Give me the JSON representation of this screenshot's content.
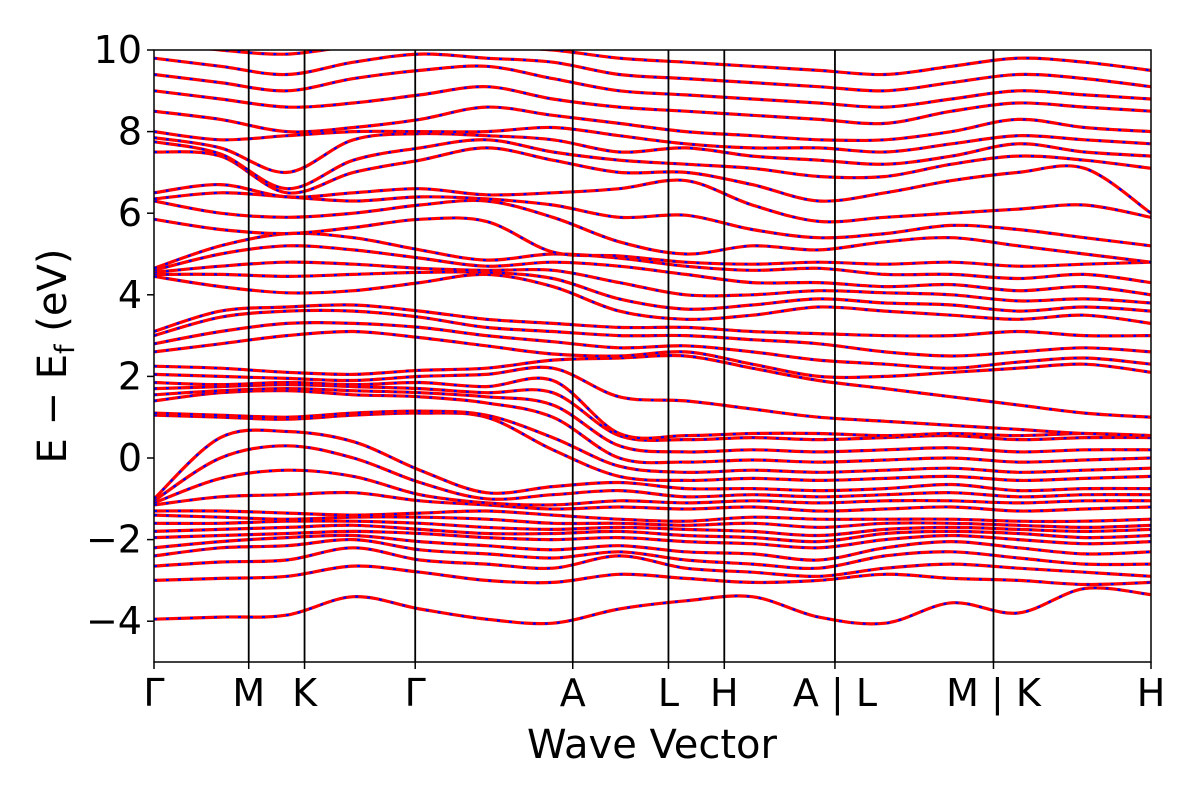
{
  "chart_data": {
    "type": "line",
    "title": "",
    "xlabel": "Wave Vector",
    "ylabel_parts": {
      "main": "E − E",
      "sub": "f",
      "unit": " (eV)"
    },
    "ylim": [
      -5,
      10
    ],
    "yticks": [
      {
        "value": 10,
        "label": "10"
      },
      {
        "value": 8,
        "label": "8"
      },
      {
        "value": 6,
        "label": "6"
      },
      {
        "value": 4,
        "label": "4"
      },
      {
        "value": 2,
        "label": "2"
      },
      {
        "value": 0,
        "label": "0"
      },
      {
        "value": -2,
        "label": "−2"
      },
      {
        "value": -4,
        "label": "−4"
      }
    ],
    "kpath": [
      {
        "label": "Γ",
        "k": 0.0
      },
      {
        "label": "M",
        "k": 0.095
      },
      {
        "label": "K",
        "k": 0.151
      },
      {
        "label": "Γ",
        "k": 0.262
      },
      {
        "label": "A",
        "k": 0.42
      },
      {
        "label": "L",
        "k": 0.516
      },
      {
        "label": "H",
        "k": 0.572
      },
      {
        "label": "A | L",
        "k": 0.683
      },
      {
        "label": "M | K",
        "k": 0.842
      },
      {
        "label": "H",
        "k": 1.0
      }
    ],
    "grid": false,
    "colors": {
      "band_line": "#ff0000",
      "band_dash": "#0000ff",
      "kpoint_line": "#000000",
      "axes": "#000000"
    },
    "series": [
      {
        "values": [
          -3.95,
          -3.9,
          -3.85,
          -3.4,
          -3.7,
          -3.95,
          -4.05,
          -3.7,
          -3.5,
          -3.4,
          -3.9,
          -4.05,
          -3.55,
          -3.8,
          -3.2,
          -3.35
        ]
      },
      {
        "values": [
          -3.0,
          -2.95,
          -2.9,
          -2.65,
          -2.8,
          -3.0,
          -3.05,
          -2.85,
          -2.95,
          -3.05,
          -3.0,
          -2.85,
          -2.95,
          -3.0,
          -3.1,
          -3.05
        ]
      },
      {
        "values": [
          -2.65,
          -2.55,
          -2.5,
          -2.2,
          -2.5,
          -2.6,
          -2.7,
          -2.4,
          -2.7,
          -2.8,
          -2.9,
          -2.7,
          -2.6,
          -2.7,
          -2.8,
          -2.9
        ]
      },
      {
        "values": [
          -2.4,
          -2.2,
          -2.15,
          -2.0,
          -2.25,
          -2.35,
          -2.45,
          -2.3,
          -2.5,
          -2.6,
          -2.7,
          -2.4,
          -2.3,
          -2.45,
          -2.6,
          -2.6
        ]
      },
      {
        "values": [
          -2.2,
          -2.05,
          -1.95,
          -1.9,
          -2.05,
          -2.15,
          -2.25,
          -2.15,
          -2.3,
          -2.35,
          -2.5,
          -2.2,
          -2.05,
          -2.2,
          -2.35,
          -2.3
        ]
      },
      {
        "values": [
          -1.95,
          -1.9,
          -1.85,
          -1.8,
          -1.85,
          -1.95,
          -2.0,
          -1.95,
          -2.05,
          -2.1,
          -2.2,
          -2.0,
          -1.9,
          -2.0,
          -2.1,
          -2.05
        ]
      },
      {
        "values": [
          -1.8,
          -1.75,
          -1.7,
          -1.65,
          -1.75,
          -1.85,
          -1.85,
          -1.8,
          -1.9,
          -1.95,
          -2.05,
          -1.85,
          -1.8,
          -1.85,
          -1.95,
          -1.9
        ]
      },
      {
        "values": [
          -1.6,
          -1.6,
          -1.55,
          -1.55,
          -1.6,
          -1.7,
          -1.75,
          -1.7,
          -1.75,
          -1.8,
          -1.9,
          -1.75,
          -1.7,
          -1.75,
          -1.8,
          -1.75
        ]
      },
      {
        "values": [
          -1.4,
          -1.45,
          -1.5,
          -1.45,
          -1.45,
          -1.5,
          -1.6,
          -1.6,
          -1.65,
          -1.6,
          -1.7,
          -1.6,
          -1.6,
          -1.65,
          -1.7,
          -1.65
        ]
      },
      {
        "values": [
          -1.3,
          -1.3,
          -1.35,
          -1.4,
          -1.35,
          -1.3,
          -1.4,
          -1.5,
          -1.55,
          -1.45,
          -1.5,
          -1.5,
          -1.5,
          -1.55,
          -1.55,
          -1.5
        ]
      },
      {
        "values": [
          -1.15,
          -0.95,
          -0.9,
          -0.85,
          -1.05,
          -1.15,
          -1.25,
          -1.2,
          -1.25,
          -1.2,
          -1.3,
          -1.25,
          -1.2,
          -1.3,
          -1.25,
          -1.2
        ]
      },
      {
        "values": [
          -1.1,
          -0.5,
          -0.3,
          -0.45,
          -0.9,
          -1.1,
          -1.15,
          -1.05,
          -1.1,
          -1.05,
          -1.1,
          -1.05,
          -1.05,
          -1.1,
          -1.05,
          -1.05
        ]
      },
      {
        "values": [
          -1.05,
          0.0,
          0.3,
          0.0,
          -0.6,
          -1.0,
          -0.9,
          -0.8,
          -0.95,
          -0.9,
          -0.95,
          -0.9,
          -0.85,
          -0.95,
          -0.9,
          -0.9
        ]
      },
      {
        "values": [
          -1.0,
          0.5,
          0.65,
          0.4,
          -0.3,
          -0.85,
          -0.7,
          -0.6,
          -0.75,
          -0.75,
          -0.8,
          -0.75,
          -0.65,
          -0.8,
          -0.75,
          -0.75
        ]
      },
      {
        "values": [
          1.05,
          1.0,
          0.95,
          1.05,
          1.1,
          1.0,
          0.2,
          -0.45,
          -0.55,
          -0.5,
          -0.55,
          -0.5,
          -0.45,
          -0.55,
          -0.5,
          -0.45
        ]
      },
      {
        "values": [
          1.1,
          1.05,
          1.0,
          1.1,
          1.15,
          1.05,
          0.5,
          -0.2,
          -0.35,
          -0.3,
          -0.35,
          -0.3,
          -0.25,
          -0.35,
          -0.3,
          -0.25
        ]
      },
      {
        "values": [
          1.4,
          1.6,
          1.65,
          1.55,
          1.5,
          1.35,
          1.0,
          0.0,
          -0.1,
          -0.05,
          -0.1,
          -0.05,
          0.0,
          -0.1,
          -0.05,
          0.0
        ]
      },
      {
        "values": [
          1.55,
          1.65,
          1.7,
          1.65,
          1.6,
          1.5,
          1.3,
          0.3,
          0.15,
          0.2,
          0.15,
          0.2,
          0.25,
          0.15,
          0.2,
          0.2
        ]
      },
      {
        "values": [
          1.7,
          1.75,
          1.8,
          1.75,
          1.7,
          1.6,
          1.6,
          0.55,
          0.45,
          0.5,
          0.45,
          0.5,
          0.55,
          0.45,
          0.5,
          0.5
        ]
      },
      {
        "values": [
          1.85,
          1.8,
          1.85,
          1.8,
          1.85,
          1.75,
          1.9,
          0.6,
          0.55,
          0.6,
          0.6,
          0.55,
          0.6,
          0.55,
          0.6,
          0.55
        ]
      },
      {
        "values": [
          2.05,
          2.0,
          1.95,
          1.9,
          2.0,
          2.05,
          2.2,
          1.5,
          1.4,
          1.2,
          1.0,
          0.9,
          0.8,
          0.7,
          0.6,
          0.55
        ]
      },
      {
        "values": [
          2.25,
          2.2,
          2.1,
          2.05,
          2.15,
          2.2,
          2.4,
          2.45,
          2.5,
          2.2,
          1.9,
          1.7,
          1.5,
          1.3,
          1.1,
          1.0
        ]
      },
      {
        "values": [
          2.6,
          2.8,
          3.0,
          3.1,
          2.95,
          2.75,
          2.55,
          2.5,
          2.6,
          2.3,
          2.0,
          2.0,
          2.1,
          2.2,
          2.3,
          2.1
        ]
      },
      {
        "values": [
          2.8,
          3.1,
          3.3,
          3.3,
          3.2,
          3.0,
          2.85,
          2.7,
          2.75,
          2.6,
          2.4,
          2.3,
          2.2,
          2.35,
          2.45,
          2.3
        ]
      },
      {
        "values": [
          3.0,
          3.45,
          3.6,
          3.6,
          3.45,
          3.2,
          3.1,
          3.0,
          3.0,
          2.9,
          2.8,
          2.6,
          2.5,
          2.6,
          2.7,
          2.6
        ]
      },
      {
        "values": [
          3.1,
          3.6,
          3.7,
          3.75,
          3.6,
          3.4,
          3.3,
          3.2,
          3.2,
          3.1,
          3.05,
          3.0,
          3.0,
          3.1,
          3.0,
          3.0
        ]
      },
      {
        "values": [
          4.45,
          4.2,
          4.05,
          4.1,
          4.3,
          4.5,
          4.2,
          3.6,
          3.4,
          3.5,
          3.7,
          3.6,
          3.5,
          3.4,
          3.5,
          3.3
        ]
      },
      {
        "values": [
          4.5,
          4.5,
          4.45,
          4.5,
          4.55,
          4.55,
          4.4,
          3.9,
          3.65,
          3.75,
          3.9,
          3.8,
          3.75,
          3.6,
          3.7,
          3.6
        ]
      },
      {
        "values": [
          4.55,
          4.7,
          4.8,
          4.75,
          4.65,
          4.6,
          4.6,
          4.3,
          4.0,
          4.0,
          4.1,
          4.05,
          4.0,
          3.85,
          3.9,
          3.8
        ]
      },
      {
        "values": [
          4.6,
          5.0,
          5.2,
          5.1,
          4.9,
          4.7,
          4.8,
          4.7,
          4.5,
          4.3,
          4.3,
          4.2,
          4.25,
          4.1,
          4.2,
          4.0
        ]
      },
      {
        "values": [
          4.65,
          5.2,
          5.5,
          5.4,
          5.1,
          4.85,
          5.0,
          4.9,
          4.7,
          4.6,
          4.65,
          4.5,
          4.5,
          4.4,
          4.5,
          4.3
        ]
      },
      {
        "values": [
          5.85,
          5.6,
          5.5,
          5.65,
          5.85,
          5.8,
          5.05,
          4.95,
          4.8,
          4.75,
          4.8,
          4.75,
          4.8,
          4.7,
          4.75,
          4.8
        ]
      },
      {
        "values": [
          6.3,
          6.0,
          5.9,
          6.0,
          6.2,
          6.3,
          5.9,
          5.3,
          5.0,
          5.2,
          5.1,
          5.3,
          5.4,
          5.2,
          5.0,
          4.8
        ]
      },
      {
        "values": [
          6.35,
          6.5,
          6.4,
          6.3,
          6.4,
          6.35,
          6.2,
          5.9,
          5.95,
          5.6,
          5.4,
          5.5,
          5.7,
          5.6,
          5.4,
          5.2
        ]
      },
      {
        "values": [
          6.5,
          6.7,
          6.4,
          6.5,
          6.6,
          6.45,
          6.5,
          6.6,
          6.8,
          6.2,
          5.8,
          5.9,
          6.0,
          6.1,
          6.2,
          5.9
        ]
      },
      {
        "values": [
          7.5,
          7.4,
          6.5,
          7.0,
          7.3,
          7.6,
          7.3,
          7.0,
          7.0,
          6.7,
          6.3,
          6.5,
          6.8,
          7.0,
          7.1,
          6.0
        ]
      },
      {
        "values": [
          7.75,
          7.45,
          6.6,
          7.3,
          7.6,
          7.8,
          7.5,
          7.3,
          7.2,
          7.1,
          6.9,
          6.9,
          7.2,
          7.4,
          7.3,
          7.1
        ]
      },
      {
        "values": [
          7.85,
          7.6,
          7.0,
          7.8,
          7.95,
          7.9,
          7.8,
          7.5,
          7.6,
          7.4,
          7.3,
          7.2,
          7.4,
          7.7,
          7.5,
          7.4
        ]
      },
      {
        "values": [
          8.0,
          7.8,
          7.9,
          8.0,
          8.0,
          8.0,
          8.1,
          7.9,
          7.7,
          7.6,
          7.6,
          7.5,
          7.7,
          7.9,
          7.8,
          7.7
        ]
      },
      {
        "values": [
          8.5,
          8.3,
          8.0,
          8.1,
          8.3,
          8.6,
          8.4,
          8.2,
          8.0,
          7.9,
          7.8,
          7.8,
          8.0,
          8.3,
          8.1,
          8.0
        ]
      },
      {
        "values": [
          9.0,
          8.8,
          8.6,
          8.7,
          8.9,
          9.1,
          8.8,
          8.6,
          8.5,
          8.4,
          8.3,
          8.2,
          8.5,
          8.7,
          8.6,
          8.5
        ]
      },
      {
        "values": [
          9.4,
          9.2,
          9.0,
          9.3,
          9.5,
          9.6,
          9.3,
          9.0,
          8.9,
          8.8,
          8.7,
          8.6,
          8.8,
          9.0,
          8.9,
          8.8
        ]
      },
      {
        "values": [
          9.8,
          9.6,
          9.4,
          9.7,
          9.9,
          9.8,
          9.7,
          9.4,
          9.3,
          9.2,
          9.1,
          9.0,
          9.2,
          9.4,
          9.3,
          9.1
        ]
      },
      {
        "values": [
          10.2,
          10.0,
          9.9,
          10.1,
          10.2,
          10.1,
          10.0,
          9.8,
          9.7,
          9.6,
          9.5,
          9.4,
          9.6,
          9.8,
          9.7,
          9.5
        ]
      }
    ]
  }
}
